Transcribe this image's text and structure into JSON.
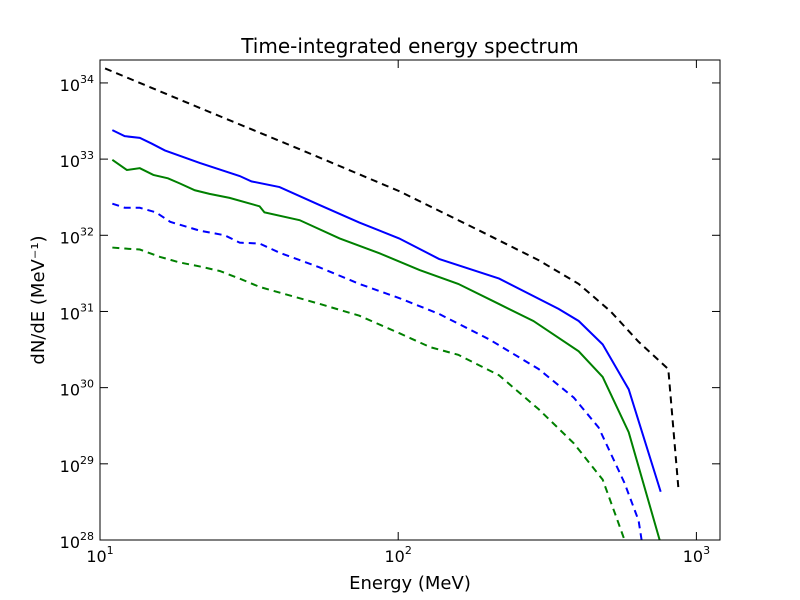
{
  "chart_data": {
    "type": "line",
    "title": "Time-integrated energy spectrum",
    "xlabel": "Energy (MeV)",
    "ylabel": "dN/dE (MeV⁻¹)",
    "xscale": "log",
    "yscale": "log",
    "grid": false,
    "xlim": [
      10,
      1200
    ],
    "ylim": [
      1e+28,
      2e+34
    ],
    "xticks": [
      {
        "value": 10,
        "label": "10^1"
      },
      {
        "value": 100,
        "label": "10^2"
      },
      {
        "value": 1000,
        "label": "10^3"
      }
    ],
    "yticks": [
      {
        "value": 1e+28,
        "label": "10^28"
      },
      {
        "value": 1e+29,
        "label": "10^29"
      },
      {
        "value": 1e+30,
        "label": "10^30"
      },
      {
        "value": 1e+31,
        "label": "10^31"
      },
      {
        "value": 1e+32,
        "label": "10^32"
      },
      {
        "value": 1e+33,
        "label": "10^33"
      },
      {
        "value": 1e+34,
        "label": "10^34"
      }
    ],
    "series": [
      {
        "color": "#000000",
        "linestyle": "dashed",
        "x": [
          10.4,
          21.6,
          46.7,
          100.7,
          186.6,
          296,
          403,
          516,
          640,
          805,
          871
        ],
        "values": [
          1.55e+34,
          4.7e+33,
          1.35e+33,
          3.8e+32,
          1.16e+32,
          4.7e+31,
          2.3e+31,
          1e+31,
          4e+30,
          1.75e+30,
          4.6e+28
        ]
      },
      {
        "color": "#0000ff",
        "linestyle": "solid",
        "x": [
          11.0,
          12.1,
          13.6,
          14.9,
          16.5,
          21.6,
          29.4,
          32.2,
          40.0,
          54.4,
          74.1,
          100.7,
          137,
          218,
          345,
          403,
          485,
          593,
          759
        ],
        "values": [
          2.4e+33,
          2e+33,
          1.9e+33,
          1.6e+33,
          1.3e+33,
          8.9e+32,
          6e+32,
          5.1e+32,
          4.3e+32,
          2.5e+32,
          1.47e+32,
          9.1e+31,
          4.9e+31,
          2.7e+31,
          1.08e+31,
          7.5e+30,
          3.7e+30,
          9.5e+29,
          4.3e+28
        ]
      },
      {
        "color": "#008000",
        "linestyle": "solid",
        "x": [
          11.0,
          12.3,
          13.6,
          15.1,
          16.9,
          18.5,
          20.8,
          23.3,
          27.2,
          34.3,
          35.6,
          46.7,
          63.6,
          86.6,
          118,
          159,
          218,
          284,
          403,
          485,
          593,
          753
        ],
        "values": [
          9.8e+32,
          7.2e+32,
          7.6e+32,
          6.2e+32,
          5.6e+32,
          4.8e+32,
          3.9e+32,
          3.5e+32,
          3.1e+32,
          2.4e+32,
          2e+32,
          1.58e+32,
          9.1e+31,
          5.8e+31,
          3.5e+31,
          2.3e+31,
          1.25e+31,
          7.5e+30,
          3e+30,
          1.38e+30,
          2.6e+29,
          1e+28
        ]
      },
      {
        "color": "#0000ff",
        "linestyle": "dashed",
        "x": [
          11.0,
          12.1,
          13.6,
          15.4,
          17.2,
          21.6,
          26.2,
          29.4,
          34.3,
          40.0,
          54.4,
          74.1,
          100.7,
          137,
          202,
          296,
          388,
          470,
          574,
          640,
          655
        ],
        "values": [
          2.6e+32,
          2.3e+32,
          2.3e+32,
          2e+32,
          1.5e+32,
          1.15e+32,
          1e+32,
          8e+31,
          7.8e+31,
          5.9e+31,
          3.8e+31,
          2.3e+31,
          1.5e+31,
          9.3e+30,
          4.3e+30,
          1.75e+30,
          7.4e+29,
          3e+29,
          5.6e+28,
          1.8e+28,
          1e+28
        ]
      },
      {
        "color": "#008000",
        "linestyle": "dashed",
        "x": [
          11.0,
          12.1,
          13.6,
          15.9,
          18.5,
          21.6,
          25.2,
          29.4,
          34.3,
          40.0,
          54.4,
          74.1,
          100.7,
          128,
          159,
          218,
          296,
          388,
          485,
          544,
          574
        ],
        "values": [
          6.9e+31,
          6.7e+31,
          6.5e+31,
          5.2e+31,
          4.4e+31,
          3.9e+31,
          3.4e+31,
          2.7e+31,
          2.1e+31,
          1.77e+31,
          1.26e+31,
          8.8e+30,
          5.2e+30,
          3.4e+30,
          2.7e+30,
          1.45e+30,
          5.2e+29,
          1.86e+29,
          6.2e+28,
          1.8e+28,
          1e+28
        ]
      }
    ]
  }
}
